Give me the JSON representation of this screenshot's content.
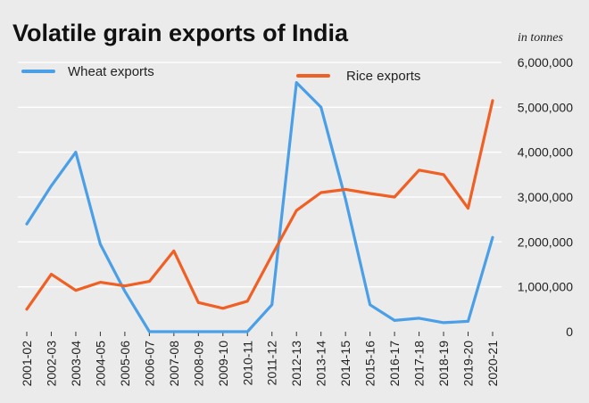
{
  "colors": {
    "background": "#ebebeb",
    "wheat": "#4a9fe6",
    "rice": "#f06024",
    "grid": "#ffffff"
  },
  "chart_data": {
    "type": "line",
    "title": "Volatile grain exports of India",
    "unit_label": "in tonnes",
    "categories": [
      "2001-02",
      "2002-03",
      "2003-04",
      "2004-05",
      "2005-06",
      "2006-07",
      "2007-08",
      "2008-09",
      "2009-10",
      "2010-11",
      "2011-12",
      "2012-13",
      "2013-14",
      "2014-15",
      "2015-16",
      "2016-17",
      "2017-18",
      "2018-19",
      "2019-20",
      "2020-21"
    ],
    "series": [
      {
        "name": "Wheat exports",
        "color": "#4a9fe6",
        "values": [
          2400000,
          3250000,
          4000000,
          1950000,
          900000,
          0,
          0,
          0,
          0,
          0,
          600000,
          5550000,
          5000000,
          2950000,
          600000,
          250000,
          300000,
          200000,
          230000,
          2100000
        ]
      },
      {
        "name": "Rice exports",
        "color": "#f06024",
        "values": [
          500000,
          1280000,
          920000,
          1100000,
          1020000,
          1120000,
          1800000,
          650000,
          520000,
          680000,
          1700000,
          2700000,
          3100000,
          3170000,
          3080000,
          3000000,
          3600000,
          3500000,
          2750000,
          5150000
        ]
      }
    ],
    "ylim": [
      0,
      6000000
    ],
    "yticks": [
      0,
      1000000,
      2000000,
      3000000,
      4000000,
      5000000,
      6000000
    ],
    "ytick_labels": [
      "0",
      "1,000,000",
      "2,000,000",
      "3,000,000",
      "4,000,000",
      "5,000,000",
      "6,000,000"
    ],
    "grid": true,
    "legend_position": "top-left"
  }
}
